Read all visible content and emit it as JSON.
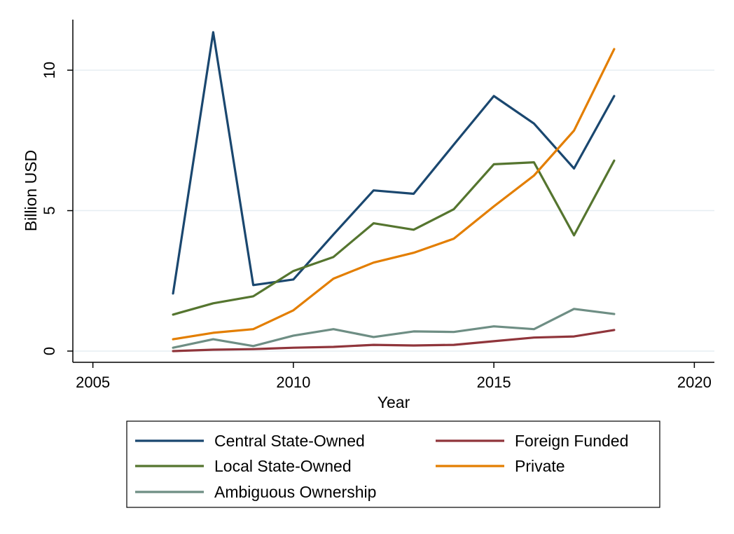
{
  "chart_data": {
    "type": "line",
    "title": "",
    "xlabel": "Year",
    "ylabel": "Billion USD",
    "xlim": [
      2004.5,
      2020.5
    ],
    "ylim": [
      -0.4,
      11.8
    ],
    "xticks": [
      2005,
      2010,
      2015,
      2020
    ],
    "xtick_labels": [
      "2005",
      "2010",
      "2015",
      "2020"
    ],
    "yticks": [
      0,
      5,
      10
    ],
    "ytick_labels": [
      "0",
      "5",
      "10"
    ],
    "grid": "horizontal",
    "legend_position": "bottom",
    "x": [
      2007,
      2008,
      2009,
      2010,
      2011,
      2012,
      2013,
      2014,
      2015,
      2016,
      2017,
      2018
    ],
    "series": [
      {
        "name": "Central State-Owned",
        "color": "#1a476f",
        "values": [
          2.05,
          11.35,
          2.35,
          2.55,
          4.15,
          5.72,
          5.6,
          7.35,
          9.08,
          8.1,
          6.5,
          9.08
        ]
      },
      {
        "name": "Foreign Funded",
        "color": "#90353b",
        "values": [
          0.0,
          0.05,
          0.07,
          0.12,
          0.15,
          0.22,
          0.2,
          0.22,
          0.35,
          0.48,
          0.52,
          0.75
        ]
      },
      {
        "name": "Local State-Owned",
        "color": "#55752f",
        "values": [
          1.3,
          1.7,
          1.95,
          2.85,
          3.35,
          4.55,
          4.32,
          5.05,
          6.65,
          6.72,
          4.12,
          6.78
        ]
      },
      {
        "name": "Private",
        "color": "#e37e00",
        "values": [
          0.42,
          0.65,
          0.78,
          1.45,
          2.58,
          3.15,
          3.5,
          4.0,
          5.15,
          6.25,
          7.85,
          10.75
        ]
      },
      {
        "name": "Ambiguous Ownership",
        "color": "#6e8e84",
        "values": [
          0.12,
          0.42,
          0.18,
          0.55,
          0.78,
          0.5,
          0.7,
          0.68,
          0.88,
          0.78,
          1.5,
          1.32
        ]
      }
    ]
  }
}
